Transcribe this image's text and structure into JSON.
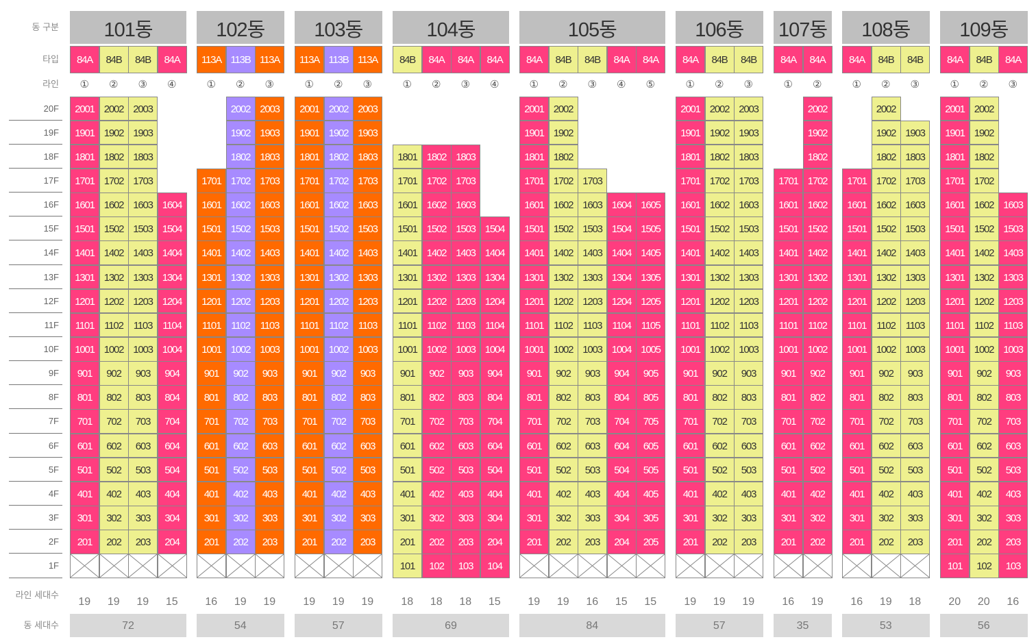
{
  "labels": {
    "building": "동 구분",
    "type": "타입",
    "line": "라인",
    "line_units": "라인 세대수",
    "bld_units": "동 세대수"
  },
  "floors": [
    "20F",
    "19F",
    "18F",
    "17F",
    "16F",
    "15F",
    "14F",
    "13F",
    "12F",
    "11F",
    "10F",
    "9F",
    "8F",
    "7F",
    "6F",
    "5F",
    "4F",
    "3F",
    "2F",
    "1F"
  ],
  "line_symbols": [
    "①",
    "②",
    "③",
    "④",
    "⑤"
  ],
  "colors": {
    "84A": "#ff3d7f",
    "84B": "#eef08f",
    "113A": "#ff6a00",
    "113B": "#a78bff",
    "header": "#bfbfbf",
    "total": "#d9d9d9"
  },
  "buildings": [
    {
      "name": "101동",
      "total": "72",
      "lines": [
        {
          "type": "84A",
          "top": 20,
          "bottom": 2,
          "units": "19"
        },
        {
          "type": "84B",
          "top": 20,
          "bottom": 2,
          "units": "19"
        },
        {
          "type": "84B",
          "top": 20,
          "bottom": 2,
          "units": "19"
        },
        {
          "type": "84A",
          "top": 16,
          "bottom": 2,
          "units": "15"
        }
      ]
    },
    {
      "name": "102동",
      "total": "54",
      "lines": [
        {
          "type": "113A",
          "top": 17,
          "bottom": 2,
          "units": "16"
        },
        {
          "type": "113B",
          "top": 20,
          "bottom": 2,
          "units": "19"
        },
        {
          "type": "113A",
          "top": 20,
          "bottom": 2,
          "units": "19"
        }
      ]
    },
    {
      "name": "103동",
      "total": "57",
      "lines": [
        {
          "type": "113A",
          "top": 20,
          "bottom": 2,
          "units": "19"
        },
        {
          "type": "113B",
          "top": 20,
          "bottom": 2,
          "units": "19"
        },
        {
          "type": "113A",
          "top": 20,
          "bottom": 2,
          "units": "19"
        }
      ]
    },
    {
      "name": "104동",
      "total": "69",
      "lines": [
        {
          "type": "84B",
          "top": 18,
          "bottom": 1,
          "units": "18"
        },
        {
          "type": "84A",
          "top": 18,
          "bottom": 1,
          "units": "18"
        },
        {
          "type": "84A",
          "top": 18,
          "bottom": 1,
          "units": "18"
        },
        {
          "type": "84A",
          "top": 15,
          "bottom": 1,
          "units": "15"
        }
      ]
    },
    {
      "name": "105동",
      "total": "84",
      "lines": [
        {
          "type": "84A",
          "top": 20,
          "bottom": 2,
          "units": "19"
        },
        {
          "type": "84B",
          "top": 20,
          "bottom": 2,
          "units": "19"
        },
        {
          "type": "84B",
          "top": 17,
          "bottom": 2,
          "units": "16"
        },
        {
          "type": "84A",
          "top": 16,
          "bottom": 2,
          "units": "15"
        },
        {
          "type": "84A",
          "top": 16,
          "bottom": 2,
          "units": "15"
        }
      ]
    },
    {
      "name": "106동",
      "total": "57",
      "lines": [
        {
          "type": "84A",
          "top": 20,
          "bottom": 2,
          "units": "19"
        },
        {
          "type": "84B",
          "top": 20,
          "bottom": 2,
          "units": "19"
        },
        {
          "type": "84B",
          "top": 20,
          "bottom": 2,
          "units": "19"
        }
      ]
    },
    {
      "name": "107동",
      "total": "35",
      "lines": [
        {
          "type": "84A",
          "top": 17,
          "bottom": 2,
          "units": "16"
        },
        {
          "type": "84A",
          "top": 20,
          "bottom": 2,
          "units": "19"
        }
      ]
    },
    {
      "name": "108동",
      "total": "53",
      "lines": [
        {
          "type": "84A",
          "top": 17,
          "bottom": 2,
          "units": "16"
        },
        {
          "type": "84B",
          "top": 20,
          "bottom": 2,
          "units": "19"
        },
        {
          "type": "84B",
          "top": 19,
          "bottom": 2,
          "units": "18"
        }
      ]
    },
    {
      "name": "109동",
      "total": "56",
      "lines": [
        {
          "type": "84A",
          "top": 20,
          "bottom": 1,
          "units": "20"
        },
        {
          "type": "84B",
          "top": 20,
          "bottom": 1,
          "units": "20"
        },
        {
          "type": "84A",
          "top": 16,
          "bottom": 1,
          "units": "16"
        }
      ]
    }
  ]
}
